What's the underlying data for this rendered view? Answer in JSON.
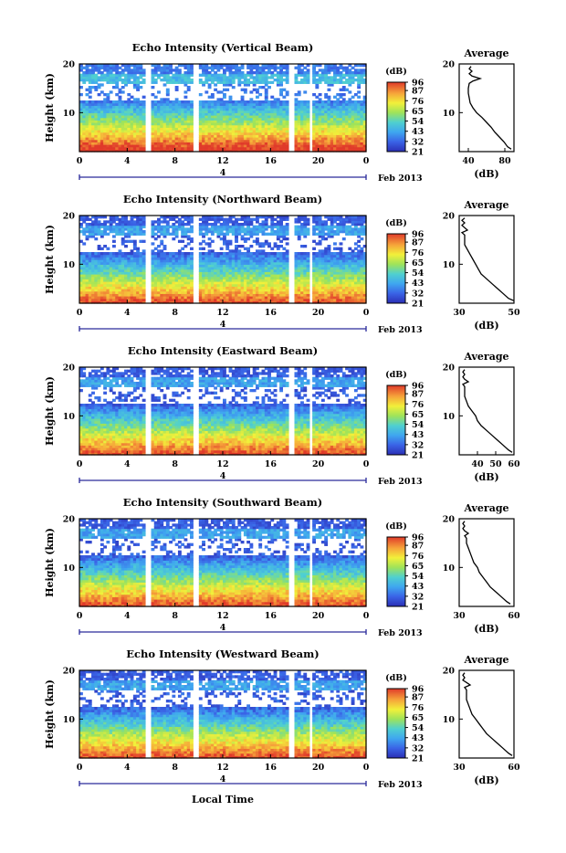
{
  "figure": {
    "xlabel": "Local Time",
    "date_label": "Feb 2013",
    "colorbar_unit": "(dB)",
    "colorbar_ticks": [
      "96",
      "87",
      "76",
      "65",
      "54",
      "43",
      "32",
      "21"
    ]
  },
  "chart_data": [
    {
      "type": "heatmap",
      "title": "Echo Intensity (Vertical Beam)",
      "ylabel": "Height (km)",
      "xlim": [
        0,
        24
      ],
      "ylim": [
        2,
        20
      ],
      "x_ticks": [
        "0",
        "4",
        "8",
        "12",
        "16",
        "20",
        "0"
      ],
      "y_ticks": [
        "10",
        "20"
      ],
      "day_label": "4",
      "colorbar": {
        "label": "(dB)",
        "ticks": [
          96,
          87,
          76,
          65,
          54,
          43,
          32,
          21
        ],
        "range": [
          21,
          96
        ]
      },
      "data_gaps_hours": [
        [
          5.5,
          6.0
        ],
        [
          9.6,
          10.0
        ],
        [
          17.6,
          18.0
        ],
        [
          19.3,
          19.6
        ]
      ],
      "average_profile": {
        "title": "Average",
        "xlabel": "(dB)",
        "xlim": [
          30,
          90
        ],
        "x_ticks": [
          "40",
          "80"
        ],
        "y_ticks": [
          "10",
          "20"
        ],
        "heights_km": [
          2.5,
          3,
          4,
          5,
          6,
          7,
          8,
          9,
          10,
          11,
          12,
          13,
          14,
          15,
          16,
          16.5,
          17,
          17.5,
          18,
          18.5,
          19,
          19.5
        ],
        "values_db": [
          87,
          83,
          79,
          74,
          69,
          65,
          60,
          55,
          49,
          45,
          42,
          41,
          40,
          40,
          41,
          45,
          53,
          44,
          41,
          44,
          41,
          43
        ]
      }
    },
    {
      "type": "heatmap",
      "title": "Echo Intensity (Northward Beam)",
      "ylabel": "Height (km)",
      "xlim": [
        0,
        24
      ],
      "ylim": [
        2,
        20
      ],
      "x_ticks": [
        "0",
        "4",
        "8",
        "12",
        "16",
        "20",
        "0"
      ],
      "y_ticks": [
        "10",
        "20"
      ],
      "day_label": "4",
      "colorbar": {
        "label": "(dB)",
        "ticks": [
          96,
          87,
          76,
          65,
          54,
          43,
          32,
          21
        ],
        "range": [
          21,
          96
        ]
      },
      "data_gaps_hours": [
        [
          5.5,
          6.0
        ],
        [
          9.6,
          10.0
        ],
        [
          17.6,
          18.0
        ],
        [
          19.3,
          19.6
        ]
      ],
      "average_profile": {
        "title": "Average",
        "xlabel": "(dB)",
        "xlim": [
          30,
          50
        ],
        "x_ticks": [
          "30",
          "50"
        ],
        "y_ticks": [
          "10",
          "20"
        ],
        "heights_km": [
          2.5,
          3,
          4,
          5,
          6,
          7,
          8,
          9,
          10,
          11,
          12,
          13,
          14,
          15,
          16,
          16.5,
          17,
          17.5,
          18,
          18.5,
          19,
          19.5
        ],
        "values_db": [
          50,
          48,
          46,
          44,
          42,
          40,
          38,
          37,
          36,
          35,
          34,
          33,
          32,
          32,
          32,
          31,
          33,
          32,
          31,
          32,
          31,
          32
        ]
      }
    },
    {
      "type": "heatmap",
      "title": "Echo Intensity (Eastward Beam)",
      "ylabel": "Height (km)",
      "xlim": [
        0,
        24
      ],
      "ylim": [
        2,
        20
      ],
      "x_ticks": [
        "0",
        "4",
        "8",
        "12",
        "16",
        "20",
        "0"
      ],
      "y_ticks": [
        "10",
        "20"
      ],
      "day_label": "4",
      "colorbar": {
        "label": "(dB)",
        "ticks": [
          96,
          87,
          76,
          65,
          54,
          43,
          32,
          21
        ],
        "range": [
          21,
          96
        ]
      },
      "data_gaps_hours": [
        [
          5.5,
          6.0
        ],
        [
          9.6,
          10.0
        ],
        [
          17.6,
          18.0
        ],
        [
          19.3,
          19.6
        ]
      ],
      "average_profile": {
        "title": "Average",
        "xlabel": "(dB)",
        "xlim": [
          30,
          60
        ],
        "x_ticks": [
          "40",
          "50",
          "60"
        ],
        "y_ticks": [
          "10",
          "20"
        ],
        "heights_km": [
          2.5,
          3,
          4,
          5,
          6,
          7,
          8,
          9,
          10,
          11,
          12,
          13,
          14,
          15,
          16,
          16.5,
          17,
          17.5,
          18,
          18.5,
          19,
          19.5
        ],
        "values_db": [
          59,
          57,
          54,
          51,
          48,
          45,
          42,
          40,
          39,
          37,
          35,
          34,
          33,
          33,
          33,
          32,
          35,
          33,
          32,
          33,
          32,
          33
        ]
      }
    },
    {
      "type": "heatmap",
      "title": "Echo Intensity (Southward Beam)",
      "ylabel": "Height (km)",
      "xlim": [
        0,
        24
      ],
      "ylim": [
        2,
        20
      ],
      "x_ticks": [
        "0",
        "4",
        "8",
        "12",
        "16",
        "20",
        "0"
      ],
      "y_ticks": [
        "10",
        "20"
      ],
      "day_label": "4",
      "colorbar": {
        "label": "(dB)",
        "ticks": [
          96,
          87,
          76,
          65,
          54,
          43,
          32,
          21
        ],
        "range": [
          21,
          96
        ]
      },
      "data_gaps_hours": [
        [
          5.5,
          6.0
        ],
        [
          9.6,
          10.0
        ],
        [
          17.6,
          18.0
        ],
        [
          19.3,
          19.6
        ]
      ],
      "average_profile": {
        "title": "Average",
        "xlabel": "(dB)",
        "xlim": [
          30,
          60
        ],
        "x_ticks": [
          "30",
          "60"
        ],
        "y_ticks": [
          "10",
          "20"
        ],
        "heights_km": [
          2.5,
          3,
          4,
          5,
          6,
          7,
          8,
          9,
          10,
          11,
          12,
          13,
          14,
          15,
          16,
          16.5,
          17,
          17.5,
          18,
          18.5,
          19,
          19.5
        ],
        "values_db": [
          58,
          56,
          53,
          50,
          47,
          45,
          43,
          41,
          40,
          38,
          37,
          36,
          35,
          34,
          34,
          33,
          35,
          33,
          32,
          33,
          32,
          33
        ]
      }
    },
    {
      "type": "heatmap",
      "title": "Echo Intensity (Westward Beam)",
      "ylabel": "Height (km)",
      "xlim": [
        0,
        24
      ],
      "ylim": [
        2,
        20
      ],
      "x_ticks": [
        "0",
        "4",
        "8",
        "12",
        "16",
        "20",
        "0"
      ],
      "y_ticks": [
        "10",
        "20"
      ],
      "day_label": "4",
      "colorbar": {
        "label": "(dB)",
        "ticks": [
          96,
          87,
          76,
          65,
          54,
          43,
          32,
          21
        ],
        "range": [
          21,
          96
        ]
      },
      "data_gaps_hours": [
        [
          5.5,
          6.0
        ],
        [
          9.6,
          10.0
        ],
        [
          17.6,
          18.0
        ],
        [
          19.3,
          19.6
        ]
      ],
      "average_profile": {
        "title": "Average",
        "xlabel": "(dB)",
        "xlim": [
          30,
          60
        ],
        "x_ticks": [
          "30",
          "60"
        ],
        "y_ticks": [
          "10",
          "20"
        ],
        "heights_km": [
          2.5,
          3,
          4,
          5,
          6,
          7,
          8,
          9,
          10,
          11,
          12,
          13,
          14,
          15,
          16,
          16.5,
          17,
          17.5,
          18,
          18.5,
          19,
          19.5
        ],
        "values_db": [
          59,
          57,
          54,
          51,
          48,
          45,
          43,
          41,
          39,
          37,
          36,
          35,
          34,
          34,
          34,
          33,
          36,
          34,
          32,
          33,
          32,
          33
        ]
      }
    }
  ]
}
